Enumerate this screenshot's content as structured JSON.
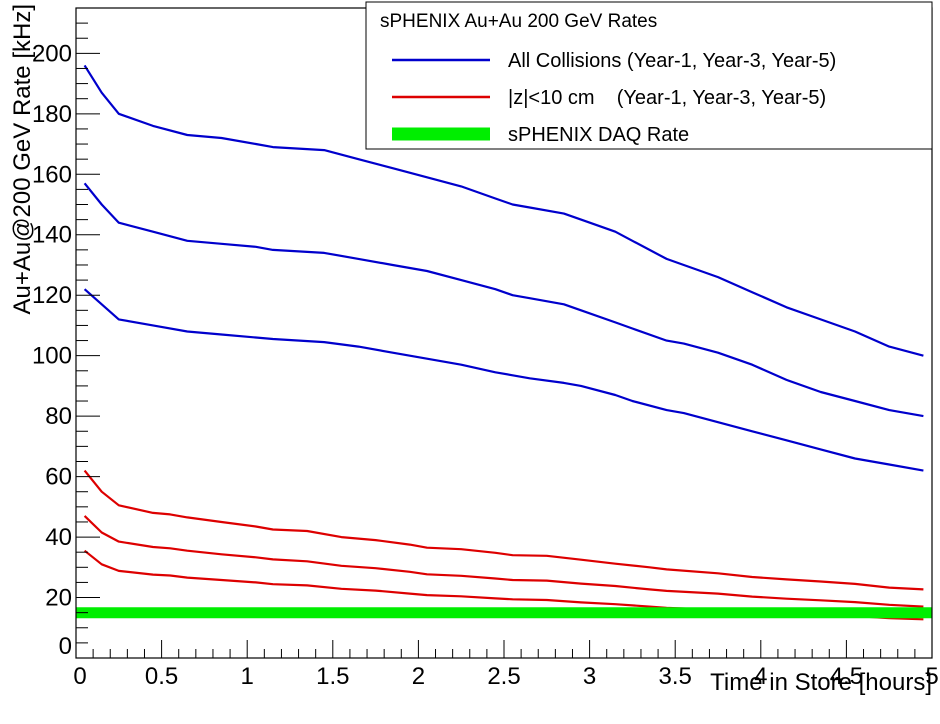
{
  "chart_data": {
    "type": "line",
    "xlabel": "Time in Store [hours]",
    "ylabel": "Au+Au@200 GeV Rate [kHz]",
    "xlim": [
      0,
      5
    ],
    "ylim": [
      0,
      215
    ],
    "x_ticks": [
      "0",
      "0.5",
      "1",
      "1.5",
      "2",
      "2.5",
      "3",
      "3.5",
      "4",
      "4.5",
      "5"
    ],
    "y_ticks": [
      "0",
      "20",
      "40",
      "60",
      "80",
      "100",
      "120",
      "140",
      "160",
      "180",
      "200"
    ],
    "grid": false,
    "legend": {
      "placement": "top-right",
      "title": "sPHENIX Au+Au 200 GeV Rates",
      "entries": [
        {
          "label": "All Collisions (Year-1, Year-3, Year-5)",
          "color": "#0000cc"
        },
        {
          "label": "|z|<10 cm    (Year-1, Year-3, Year-5)",
          "color": "#dd0000"
        },
        {
          "label": "sPHENIX DAQ Rate",
          "color": "#00ee00"
        }
      ]
    },
    "series": [
      {
        "color": "#0000cc",
        "x": [
          0.05,
          0.15,
          0.25,
          0.45,
          0.65,
          0.85,
          1.05,
          1.15,
          1.45,
          1.65,
          1.85,
          2.05,
          2.25,
          2.45,
          2.55,
          2.65,
          2.85,
          2.95,
          3.15,
          3.25,
          3.45,
          3.55,
          3.75,
          3.95,
          4.15,
          4.35,
          4.55,
          4.75,
          4.95
        ],
        "y": [
          196,
          187,
          180,
          176,
          173,
          172,
          170,
          169,
          168,
          165,
          162,
          159,
          156,
          152,
          150,
          149,
          147,
          145,
          141,
          138,
          132,
          130,
          126,
          121,
          116,
          112,
          108,
          103,
          100
        ]
      },
      {
        "color": "#0000cc",
        "x": [
          0.05,
          0.15,
          0.25,
          0.45,
          0.65,
          0.85,
          1.05,
          1.15,
          1.45,
          1.65,
          1.85,
          2.05,
          2.25,
          2.45,
          2.55,
          2.65,
          2.85,
          2.95,
          3.15,
          3.25,
          3.45,
          3.55,
          3.75,
          3.95,
          4.15,
          4.35,
          4.55,
          4.75,
          4.95
        ],
        "y": [
          157,
          150,
          144,
          141,
          138,
          137,
          136,
          135,
          134,
          132,
          130,
          128,
          125,
          122,
          120,
          119,
          117,
          115,
          111,
          109,
          105,
          104,
          101,
          97,
          92,
          88,
          85,
          82,
          80
        ]
      },
      {
        "color": "#0000cc",
        "x": [
          0.05,
          0.15,
          0.25,
          0.45,
          0.65,
          0.85,
          1.05,
          1.15,
          1.45,
          1.65,
          1.85,
          2.05,
          2.25,
          2.45,
          2.55,
          2.65,
          2.85,
          2.95,
          3.15,
          3.25,
          3.45,
          3.55,
          3.75,
          3.95,
          4.15,
          4.35,
          4.55,
          4.75,
          4.95
        ],
        "y": [
          122,
          117,
          112,
          110,
          108,
          107,
          106,
          105.5,
          104.5,
          103,
          101,
          99,
          97,
          94.5,
          93.5,
          92.5,
          91,
          90,
          87,
          85,
          82,
          81,
          78,
          75,
          72,
          69,
          66,
          64,
          62
        ]
      },
      {
        "color": "#dd0000",
        "x": [
          0.05,
          0.15,
          0.25,
          0.45,
          0.55,
          0.65,
          0.85,
          1.05,
          1.15,
          1.35,
          1.55,
          1.75,
          1.95,
          2.05,
          2.25,
          2.45,
          2.55,
          2.75,
          2.95,
          3.15,
          3.35,
          3.45,
          3.75,
          3.95,
          4.15,
          4.35,
          4.55,
          4.75,
          4.95
        ],
        "y": [
          62,
          55,
          50.5,
          48,
          47.5,
          46.5,
          45,
          43.5,
          42.5,
          42,
          40,
          39,
          37.5,
          36.5,
          36,
          34.8,
          34,
          33.8,
          32.5,
          31.2,
          30,
          29.3,
          28,
          26.8,
          26,
          25.3,
          24.5,
          23.3,
          22.7
        ]
      },
      {
        "color": "#dd0000",
        "x": [
          0.05,
          0.15,
          0.25,
          0.45,
          0.55,
          0.65,
          0.85,
          1.05,
          1.15,
          1.35,
          1.55,
          1.75,
          1.95,
          2.05,
          2.25,
          2.45,
          2.55,
          2.75,
          2.95,
          3.15,
          3.35,
          3.45,
          3.75,
          3.95,
          4.15,
          4.35,
          4.55,
          4.75,
          4.95
        ],
        "y": [
          47,
          41.5,
          38.5,
          36.7,
          36.3,
          35.5,
          34.3,
          33.3,
          32.6,
          32,
          30.5,
          29.7,
          28.5,
          27.7,
          27.2,
          26.3,
          25.8,
          25.6,
          24.6,
          23.8,
          22.7,
          22.2,
          21.3,
          20.3,
          19.6,
          19.1,
          18.5,
          17.6,
          17
        ]
      },
      {
        "color": "#dd0000",
        "x": [
          0.05,
          0.15,
          0.25,
          0.45,
          0.55,
          0.65,
          0.85,
          1.05,
          1.15,
          1.35,
          1.55,
          1.75,
          1.95,
          2.05,
          2.25,
          2.45,
          2.55,
          2.75,
          2.95,
          3.15,
          3.35,
          3.45,
          3.75,
          3.95,
          4.15,
          4.35,
          4.55,
          4.75,
          4.95
        ],
        "y": [
          35.5,
          31,
          28.8,
          27.6,
          27.3,
          26.6,
          25.8,
          25,
          24.4,
          24,
          22.9,
          22.3,
          21.3,
          20.8,
          20.4,
          19.7,
          19.4,
          19.2,
          18.4,
          17.8,
          17,
          16.6,
          15.9,
          15.2,
          14.7,
          14.3,
          13.9,
          13.2,
          12.8
        ]
      },
      {
        "color": "#00ee00",
        "x": [
          0,
          5
        ],
        "y": [
          15,
          15
        ],
        "width": 11
      }
    ]
  }
}
